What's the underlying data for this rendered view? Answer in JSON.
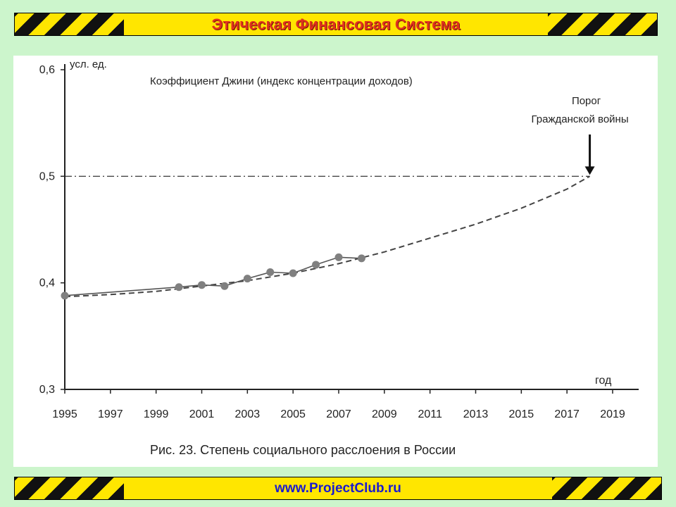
{
  "header": {
    "title": "Этическая Финансовая Система"
  },
  "footer": {
    "link": "www.ProjectClub.ru"
  },
  "colors": {
    "banner_yellow": "#ffe600",
    "stripe_black": "#111111",
    "title_red": "#e0321e",
    "link_blue": "#1a1ad0",
    "background_green": "#ccf5cc"
  },
  "chart_data": {
    "type": "line",
    "title": "Коэффициент Джини (индекс концентрации доходов)",
    "caption": "Рис. 23. Степень социального расслоения в России",
    "ylabel": "усл. ед.",
    "xlabel": "год",
    "ylim": [
      0.3,
      0.6
    ],
    "xlim": [
      1995,
      2019
    ],
    "yticks": [
      0.3,
      0.4,
      0.5,
      0.6
    ],
    "ytick_labels": [
      "0,3",
      "0,4",
      "0,5",
      "0,6"
    ],
    "xticks": [
      1995,
      1997,
      1999,
      2001,
      2003,
      2005,
      2007,
      2009,
      2011,
      2013,
      2015,
      2017,
      2019
    ],
    "grid": false,
    "series": [
      {
        "style": "solid-with-markers",
        "x": [
          1995,
          2000,
          2001,
          2002,
          2003,
          2004,
          2005,
          2006,
          2007,
          2008
        ],
        "values": [
          0.388,
          0.396,
          0.398,
          0.397,
          0.404,
          0.41,
          0.409,
          0.417,
          0.424,
          0.423
        ]
      },
      {
        "style": "dashed-trend",
        "x": [
          1995,
          1997,
          1999,
          2001,
          2003,
          2005,
          2007,
          2009,
          2011,
          2013,
          2015,
          2017,
          2018
        ],
        "values": [
          0.387,
          0.389,
          0.392,
          0.397,
          0.402,
          0.409,
          0.418,
          0.429,
          0.442,
          0.455,
          0.47,
          0.488,
          0.5
        ]
      }
    ],
    "threshold": {
      "value": 0.5,
      "style": "dash-dot",
      "label_lines": [
        "Порог",
        "Гражданской войны"
      ],
      "x": 2018
    }
  }
}
